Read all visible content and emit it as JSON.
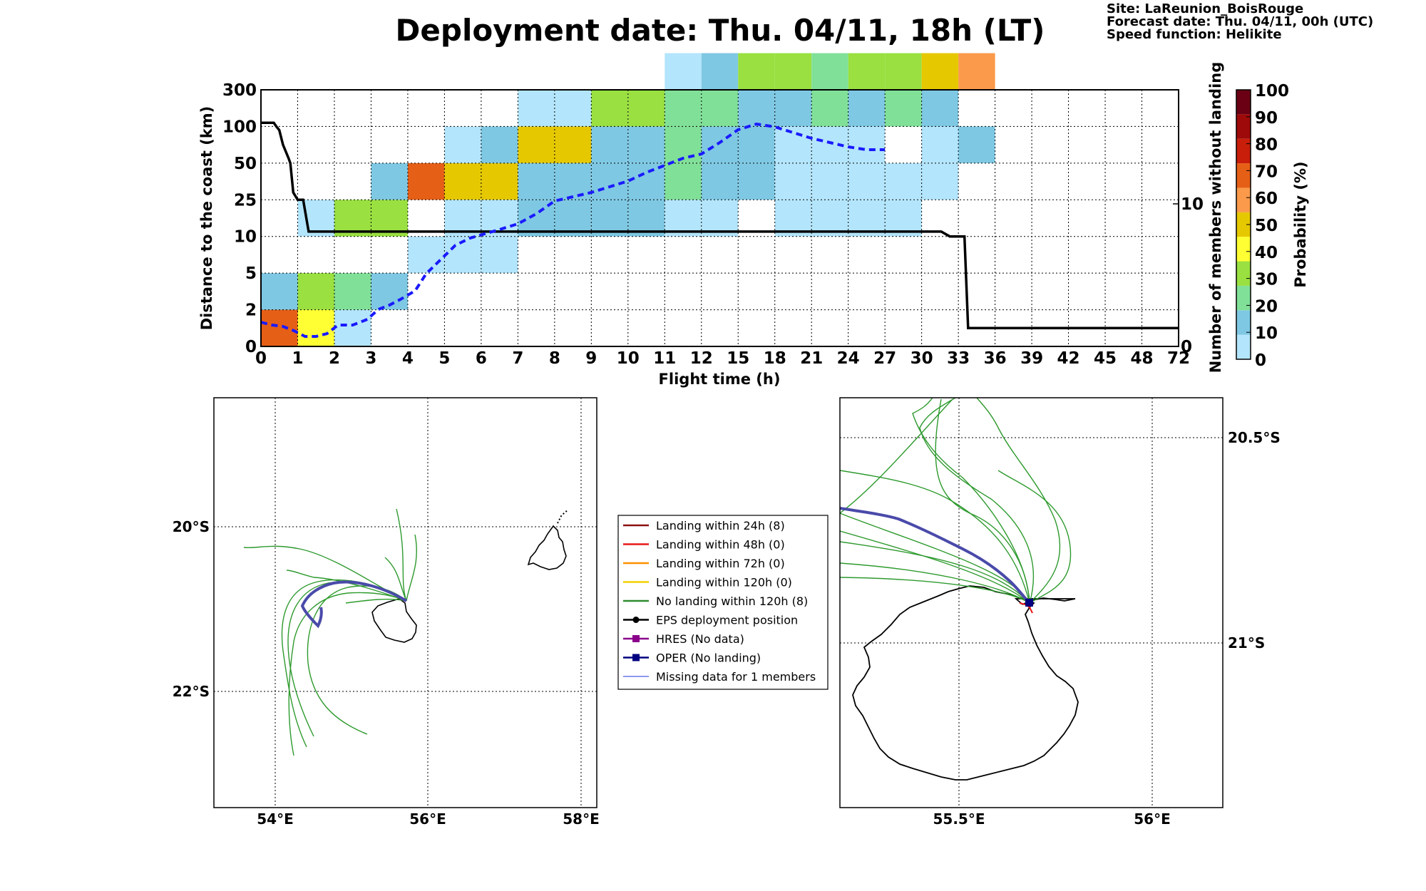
{
  "header": {
    "title": "Deployment date: Thu. 04/11, 18h (LT)",
    "site": "Site: LaReunion_BoisRouge",
    "forecast": "Forecast date: Thu. 04/11, 00h (UTC)",
    "speed": "Speed function: Helikite"
  },
  "chart_data": [
    {
      "type": "heatmap",
      "xlabel": "Flight time (h)",
      "ylabel": "Distance to the coast (km)",
      "y2label": "Number of members without landing",
      "x_ticks": [
        "0",
        "1",
        "2",
        "3",
        "4",
        "5",
        "6",
        "7",
        "8",
        "9",
        "10",
        "11",
        "12",
        "15",
        "18",
        "21",
        "24",
        "27",
        "30",
        "33",
        "36",
        "39",
        "42",
        "45",
        "48",
        "72"
      ],
      "y_ticks": [
        "0",
        "2",
        "5",
        "10",
        "25",
        "50",
        "100",
        "300"
      ],
      "y2_ticks": [
        "0",
        "10"
      ],
      "grid": true,
      "colorbar": {
        "label": "Probability (%)",
        "ticks": [
          "0",
          "10",
          "20",
          "30",
          "40",
          "50",
          "60",
          "70",
          "80",
          "90",
          "100"
        ],
        "colors": [
          "#b3e5fc",
          "#7ec8e3",
          "#80e098",
          "#99e040",
          "#ffff33",
          "#e6c800",
          "#fa9a4a",
          "#e65f17",
          "#c81e0a",
          "#9e0a0a",
          "#6b0014"
        ]
      },
      "cells": [
        {
          "x": 0,
          "y": 0,
          "p": 75
        },
        {
          "x": 0,
          "y": 1,
          "p": 10
        },
        {
          "x": 1,
          "y": 0,
          "p": 40
        },
        {
          "x": 1,
          "y": 1,
          "p": 30
        },
        {
          "x": 1,
          "y": 3,
          "p": 5
        },
        {
          "x": 2,
          "y": 0,
          "p": 5
        },
        {
          "x": 2,
          "y": 1,
          "p": 20
        },
        {
          "x": 2,
          "y": 3,
          "p": 30
        },
        {
          "x": 3,
          "y": 1,
          "p": 10
        },
        {
          "x": 3,
          "y": 3,
          "p": 30
        },
        {
          "x": 3,
          "y": 4,
          "p": 10
        },
        {
          "x": 4,
          "y": 2,
          "p": 5
        },
        {
          "x": 4,
          "y": 4,
          "p": 75
        },
        {
          "x": 5,
          "y": 2,
          "p": 5
        },
        {
          "x": 5,
          "y": 3,
          "p": 5
        },
        {
          "x": 5,
          "y": 4,
          "p": 50
        },
        {
          "x": 5,
          "y": 5,
          "p": 5
        },
        {
          "x": 6,
          "y": 2,
          "p": 5
        },
        {
          "x": 6,
          "y": 3,
          "p": 5
        },
        {
          "x": 6,
          "y": 4,
          "p": 50
        },
        {
          "x": 6,
          "y": 5,
          "p": 10
        },
        {
          "x": 7,
          "y": 3,
          "p": 10
        },
        {
          "x": 7,
          "y": 4,
          "p": 10
        },
        {
          "x": 7,
          "y": 5,
          "p": 50
        },
        {
          "x": 7,
          "y": 6,
          "p": 5
        },
        {
          "x": 8,
          "y": 3,
          "p": 10
        },
        {
          "x": 8,
          "y": 4,
          "p": 10
        },
        {
          "x": 8,
          "y": 5,
          "p": 50
        },
        {
          "x": 8,
          "y": 6,
          "p": 5
        },
        {
          "x": 9,
          "y": 3,
          "p": 10
        },
        {
          "x": 9,
          "y": 4,
          "p": 10
        },
        {
          "x": 9,
          "y": 5,
          "p": 10
        },
        {
          "x": 9,
          "y": 6,
          "p": 30
        },
        {
          "x": 10,
          "y": 3,
          "p": 10
        },
        {
          "x": 10,
          "y": 4,
          "p": 10
        },
        {
          "x": 10,
          "y": 5,
          "p": 10
        },
        {
          "x": 10,
          "y": 6,
          "p": 30
        },
        {
          "x": 11,
          "y": 3,
          "p": 5
        },
        {
          "x": 11,
          "y": 4,
          "p": 20
        },
        {
          "x": 11,
          "y": 5,
          "p": 20
        },
        {
          "x": 11,
          "y": 6,
          "p": 20
        },
        {
          "x": 11,
          "y": 7,
          "p": 5
        },
        {
          "x": 12,
          "y": 3,
          "p": 5
        },
        {
          "x": 12,
          "y": 4,
          "p": 10
        },
        {
          "x": 12,
          "y": 5,
          "p": 10
        },
        {
          "x": 12,
          "y": 6,
          "p": 20
        },
        {
          "x": 12,
          "y": 7,
          "p": 10
        },
        {
          "x": 13,
          "y": 4,
          "p": 10
        },
        {
          "x": 13,
          "y": 5,
          "p": 10
        },
        {
          "x": 13,
          "y": 6,
          "p": 10
        },
        {
          "x": 13,
          "y": 7,
          "p": 30
        },
        {
          "x": 14,
          "y": 3,
          "p": 5
        },
        {
          "x": 14,
          "y": 4,
          "p": 5
        },
        {
          "x": 14,
          "y": 5,
          "p": 5
        },
        {
          "x": 14,
          "y": 6,
          "p": 10
        },
        {
          "x": 14,
          "y": 7,
          "p": 30
        },
        {
          "x": 15,
          "y": 3,
          "p": 5
        },
        {
          "x": 15,
          "y": 4,
          "p": 5
        },
        {
          "x": 15,
          "y": 5,
          "p": 5
        },
        {
          "x": 15,
          "y": 6,
          "p": 20
        },
        {
          "x": 15,
          "y": 7,
          "p": 20
        },
        {
          "x": 16,
          "y": 3,
          "p": 5
        },
        {
          "x": 16,
          "y": 4,
          "p": 5
        },
        {
          "x": 16,
          "y": 5,
          "p": 5
        },
        {
          "x": 16,
          "y": 6,
          "p": 10
        },
        {
          "x": 16,
          "y": 7,
          "p": 30
        },
        {
          "x": 17,
          "y": 3,
          "p": 5
        },
        {
          "x": 17,
          "y": 4,
          "p": 5
        },
        {
          "x": 17,
          "y": 6,
          "p": 20
        },
        {
          "x": 17,
          "y": 7,
          "p": 30
        },
        {
          "x": 18,
          "y": 4,
          "p": 5
        },
        {
          "x": 18,
          "y": 5,
          "p": 5
        },
        {
          "x": 18,
          "y": 6,
          "p": 10
        },
        {
          "x": 18,
          "y": 7,
          "p": 50
        },
        {
          "x": 19,
          "y": 5,
          "p": 10
        },
        {
          "x": 19,
          "y": 7,
          "p": 60
        }
      ],
      "series": [
        {
          "name": "",
          "style": "solid black",
          "axis": "left",
          "x": [
            0,
            0.35,
            0.42,
            0.5,
            0.6,
            0.75,
            0.8,
            0.88,
            1.0,
            1.15,
            1.3,
            31.6,
            32.3,
            33.5,
            33.8,
            72
          ],
          "y": [
            120,
            120,
            100,
            95,
            75,
            57,
            50,
            30,
            25,
            25,
            12,
            12,
            10,
            10,
            1,
            1
          ]
        },
        {
          "name": "",
          "style": "dashed blue",
          "axis": "right",
          "x": [
            0,
            0.3,
            0.6,
            0.9,
            1.2,
            1.5,
            1.8,
            2.1,
            2.5,
            2.9,
            3.2,
            3.5,
            3.8,
            4.2,
            4.5,
            4.9,
            5.3,
            5.7,
            6.1,
            6.5,
            7.0,
            7.5,
            8.0,
            8.5,
            9.0,
            9.5,
            10.0,
            10.5,
            11.0,
            11.5,
            12.0,
            13.5,
            15.0,
            16.5,
            18.0,
            19.5,
            21.0,
            22.5,
            24.0,
            25.5,
            27.0
          ],
          "y": [
            1.7,
            1.5,
            1.4,
            1.1,
            0.7,
            0.7,
            0.9,
            1.5,
            1.5,
            1.9,
            2.6,
            2.9,
            3.3,
            3.9,
            5.1,
            6.1,
            7.1,
            7.6,
            7.9,
            8.2,
            8.6,
            9.3,
            10.2,
            10.5,
            10.8,
            11.2,
            11.6,
            12.2,
            12.7,
            13.2,
            13.5,
            14.3,
            15.2,
            15.6,
            15.4,
            15.0,
            14.6,
            14.3,
            14.0,
            13.8,
            13.8
          ]
        }
      ]
    },
    {
      "type": "map",
      "x_ticks": [
        "54°E",
        "56°E",
        "58°E"
      ],
      "y_ticks": [
        "20°S",
        "22°S"
      ],
      "grid": true
    },
    {
      "type": "map",
      "x_ticks": [
        "55.5°E",
        "56°E"
      ],
      "y_ticks": [
        "20.5°S",
        "21°S"
      ],
      "grid": true
    }
  ],
  "legend": {
    "items": [
      {
        "label": "Landing within 24h (8)",
        "color": "#8b1010",
        "marker": "none"
      },
      {
        "label": "Landing within 48h (0)",
        "color": "#e81818",
        "marker": "none"
      },
      {
        "label": "Landing within 72h (0)",
        "color": "#ff9000",
        "marker": "none"
      },
      {
        "label": "Landing within 120h (0)",
        "color": "#f2d000",
        "marker": "none"
      },
      {
        "label": "No landing within 120h (8)",
        "color": "#2e8b2e",
        "marker": "none"
      },
      {
        "label": "EPS deployment position",
        "color": "#000000",
        "marker": "circle"
      },
      {
        "label": "HRES (No data)",
        "color": "#8b008b",
        "marker": "square"
      },
      {
        "label": "OPER (No landing)",
        "color": "#000080",
        "marker": "square"
      },
      {
        "label": "Missing data for 1 members",
        "color": "#4a5ae8",
        "marker": "thin"
      }
    ]
  }
}
